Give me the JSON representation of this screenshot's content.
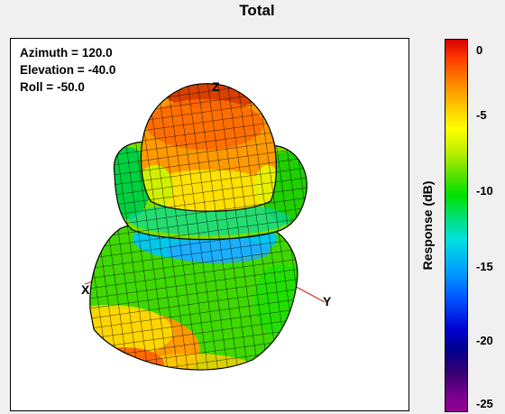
{
  "title": "Total",
  "view": {
    "azimuth_label": "Azimuth =",
    "azimuth": "120.0",
    "elevation_label": "Elevation =",
    "elevation": "-40.0",
    "roll_label": "Roll =",
    "roll": "-50.0"
  },
  "axes": {
    "x": "X",
    "y": "Y",
    "z": "Z"
  },
  "colorbar": {
    "label": "Response (dB)",
    "ticks": [
      "0",
      "-5",
      "-10",
      "-15",
      "-20",
      "-25"
    ]
  },
  "colors": {
    "max": "#d80000",
    "high": "#ff8a00",
    "mid_high": "#ffff00",
    "mid": "#00e000",
    "mid_low": "#00e0e0",
    "low": "#0000d0",
    "min": "#900090",
    "mesh_line": "#000000",
    "axis_line": "#d02020"
  }
}
